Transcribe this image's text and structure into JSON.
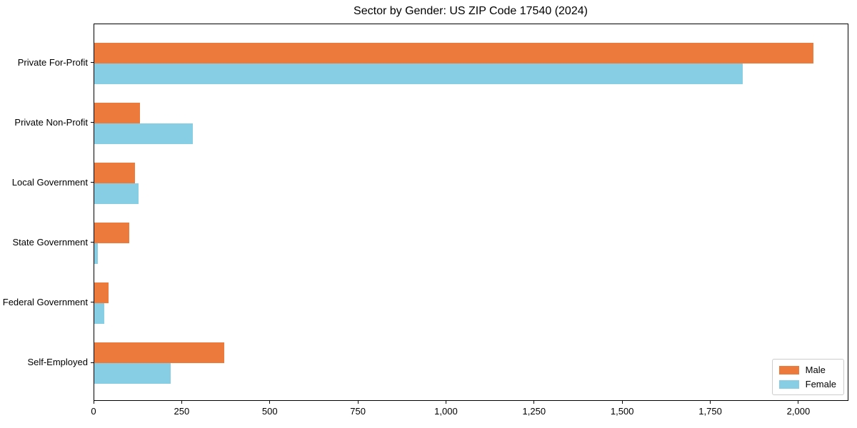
{
  "chart_data": {
    "type": "bar",
    "orientation": "horizontal",
    "title": "Sector by Gender: US ZIP Code 17540 (2024)",
    "categories": [
      "Private For-Profit",
      "Private Non-Profit",
      "Local Government",
      "State Government",
      "Federal Government",
      "Self-Employed"
    ],
    "series": [
      {
        "name": "Male",
        "color": "#EC7A3D",
        "values": [
          2040,
          130,
          116,
          100,
          40,
          368
        ]
      },
      {
        "name": "Female",
        "color": "#87CEE5",
        "values": [
          1840,
          280,
          125,
          11,
          29,
          216
        ]
      }
    ],
    "xlabel": "",
    "ylabel": "",
    "xlim": [
      0,
      2142
    ],
    "xticks": [
      0,
      250,
      500,
      750,
      1000,
      1250,
      1500,
      1750,
      2000
    ],
    "xtick_labels": [
      "0",
      "250",
      "500",
      "750",
      "1,000",
      "1,250",
      "1,500",
      "1,750",
      "2,000"
    ],
    "grid": false,
    "legend_position": "lower right",
    "background_color": "#ffffff",
    "axis_color": "#000000"
  }
}
